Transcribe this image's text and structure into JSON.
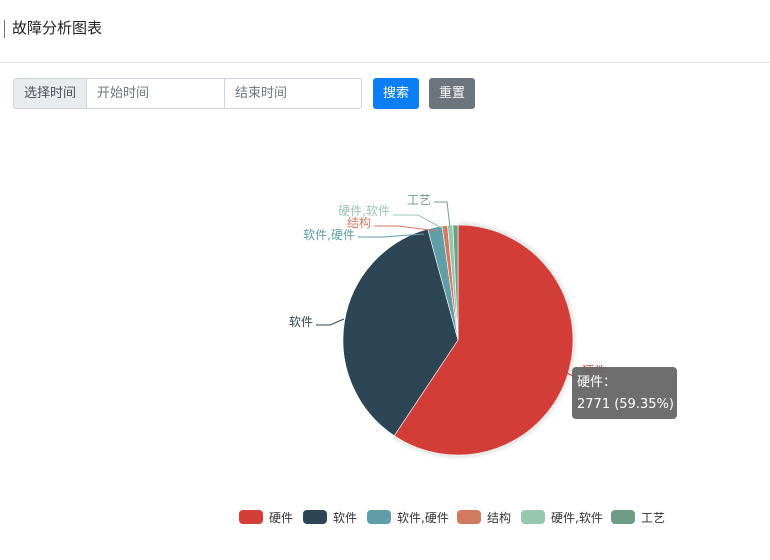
{
  "header": {
    "title": "故障分析图表"
  },
  "search": {
    "label": "选择时间",
    "start_placeholder": "开始时间",
    "end_placeholder": "结束时间",
    "search_label": "搜索",
    "reset_label": "重置"
  },
  "colors": {
    "accent": "#0d7ff6",
    "secondary": "#6c757d",
    "tooltip": "#666666"
  },
  "chart_data": {
    "type": "pie",
    "title": "",
    "series": [
      {
        "name": "硬件",
        "value": 2771,
        "color": "#d33e38"
      },
      {
        "name": "软件",
        "value": 1700,
        "color": "#2e4555"
      },
      {
        "name": "软件,硬件",
        "value": 95,
        "color": "#5f9ea6"
      },
      {
        "name": "结构",
        "value": 35,
        "color": "#d27a60"
      },
      {
        "name": "硬件,软件",
        "value": 35,
        "color": "#98c7b0"
      },
      {
        "name": "工艺",
        "value": 33,
        "color": "#6f9c85"
      }
    ],
    "legend": {
      "position": "bottom-center",
      "items": [
        "硬件",
        "软件",
        "软件,硬件",
        "结构",
        "硬件,软件",
        "工艺"
      ]
    },
    "tooltip": {
      "series_name": "硬件",
      "label": "硬件：",
      "value_text": "2771 (59.35%)"
    }
  }
}
